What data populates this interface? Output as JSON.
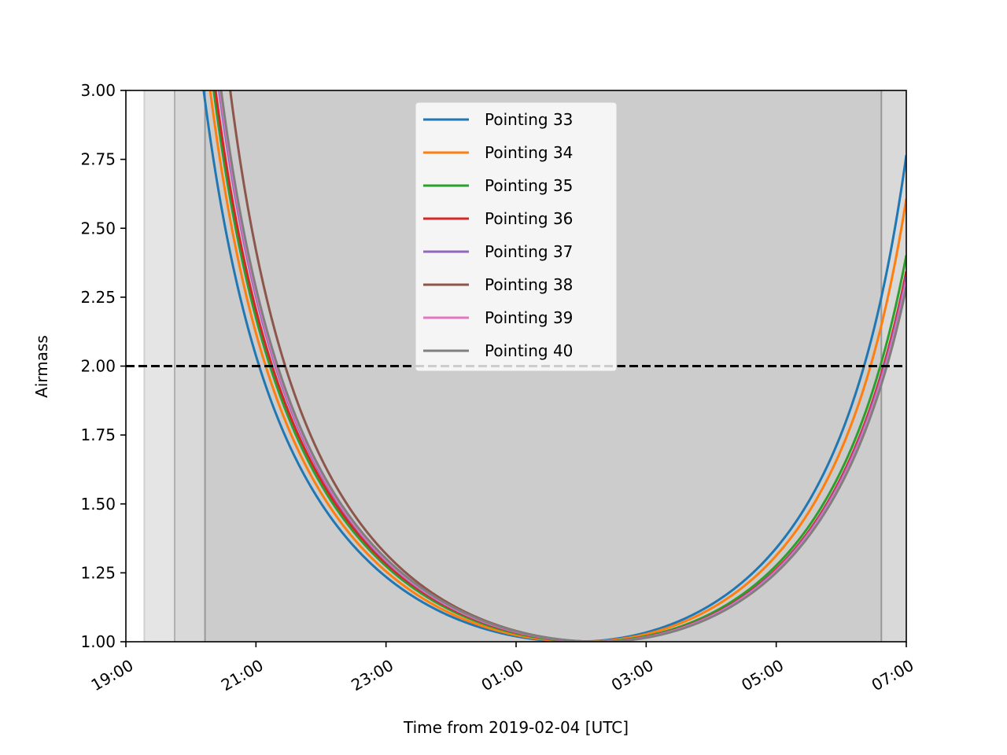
{
  "chart_data": {
    "type": "line",
    "xlabel": "Time from 2019-02-04 [UTC]",
    "ylabel": "Airmass",
    "xlim": [
      "2019-02-04T19:00",
      "2019-02-05T07:00"
    ],
    "ylim": [
      1.0,
      3.0
    ],
    "x_ticks": [
      "19:00",
      "21:00",
      "23:00",
      "01:00",
      "03:00",
      "05:00",
      "07:00"
    ],
    "y_ticks": [
      "1.00",
      "1.25",
      "1.50",
      "1.75",
      "2.00",
      "2.25",
      "2.50",
      "2.75",
      "3.00"
    ],
    "legend_position": "top-center",
    "grid": false,
    "threshold_line": {
      "y": 2.0,
      "style": "dashed",
      "color": "#000000"
    },
    "night_shading": [
      {
        "start": "2019-02-04T19:17",
        "end": "2019-02-05T07:00",
        "color": "#e5e5e5"
      },
      {
        "start": "2019-02-04T19:45",
        "end": "2019-02-05T07:00",
        "color": "#d9d9d9"
      },
      {
        "start": "2019-02-04T20:13",
        "end": "2019-02-05T06:37",
        "color": "#cccccc"
      }
    ],
    "twilight_lines": [
      {
        "x": "2019-02-04T19:17",
        "color": "#d0d0d0"
      },
      {
        "x": "2019-02-04T19:45",
        "color": "#b0b0b0"
      },
      {
        "x": "2019-02-04T20:13",
        "color": "#999999"
      },
      {
        "x": "2019-02-05T06:37",
        "color": "#999999"
      }
    ],
    "series": [
      {
        "name": "Pointing 33",
        "color": "#1f77b4",
        "transit": "2019-02-05T01:55",
        "x_airmass_2": [
          "2019-02-04T21:03",
          "2019-02-05T06:21"
        ],
        "end_value": 2.65
      },
      {
        "name": "Pointing 34",
        "color": "#ff7f0e",
        "transit": "2019-02-05T02:01",
        "x_airmass_2": [
          "2019-02-04T21:09",
          "2019-02-05T06:27"
        ],
        "end_value": 2.53
      },
      {
        "name": "Pointing 35",
        "color": "#2ca02c",
        "transit": "2019-02-05T02:09",
        "x_airmass_2": [
          "2019-02-04T21:13",
          "2019-02-05T06:36"
        ],
        "end_value": 2.32
      },
      {
        "name": "Pointing 36",
        "color": "#d62728",
        "transit": "2019-02-05T02:13",
        "x_airmass_2": [
          "2019-02-04T21:15",
          "2019-02-05T06:39"
        ],
        "end_value": 2.21
      },
      {
        "name": "Pointing 37",
        "color": "#9467bd",
        "transit": "2019-02-05T02:14",
        "x_airmass_2": [
          "2019-02-04T21:18",
          "2019-02-05T06:40"
        ],
        "end_value": 2.19
      },
      {
        "name": "Pointing 38",
        "color": "#8c564b",
        "transit": "2019-02-05T02:16",
        "x_airmass_2": [
          "2019-02-04T21:27",
          "2019-02-05T06:42"
        ],
        "end_value": 2.17
      },
      {
        "name": "Pointing 39",
        "color": "#e377c2",
        "transit": "2019-02-05T02:15",
        "x_airmass_2": [
          "2019-02-04T21:19",
          "2019-02-05T06:41"
        ],
        "end_value": 2.18
      },
      {
        "name": "Pointing 40",
        "color": "#7f7f7f",
        "transit": "2019-02-05T02:17",
        "x_airmass_2": [
          "2019-02-04T21:20",
          "2019-02-05T06:42"
        ],
        "end_value": 2.16
      }
    ]
  }
}
